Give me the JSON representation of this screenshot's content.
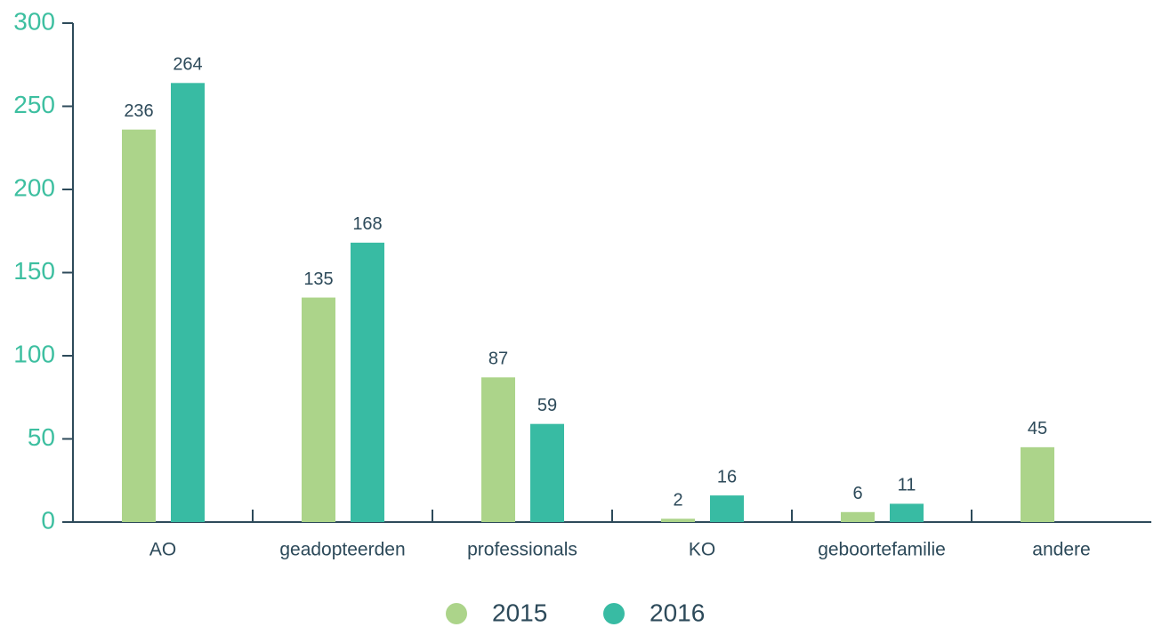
{
  "chart_data": {
    "type": "bar",
    "categories": [
      "AO",
      "geadopteerden",
      "professionals",
      "KO",
      "geboortefamilie",
      "andere"
    ],
    "series": [
      {
        "name": "2015",
        "color": "#acd48a",
        "values": [
          236,
          135,
          87,
          2,
          6,
          45
        ]
      },
      {
        "name": "2016",
        "color": "#38bba3",
        "values": [
          264,
          168,
          59,
          16,
          11,
          null
        ]
      }
    ],
    "ylim": [
      0,
      300
    ],
    "yticks": [
      0,
      50,
      100,
      150,
      200,
      250,
      300
    ],
    "grid": false,
    "legend": "bottom"
  }
}
